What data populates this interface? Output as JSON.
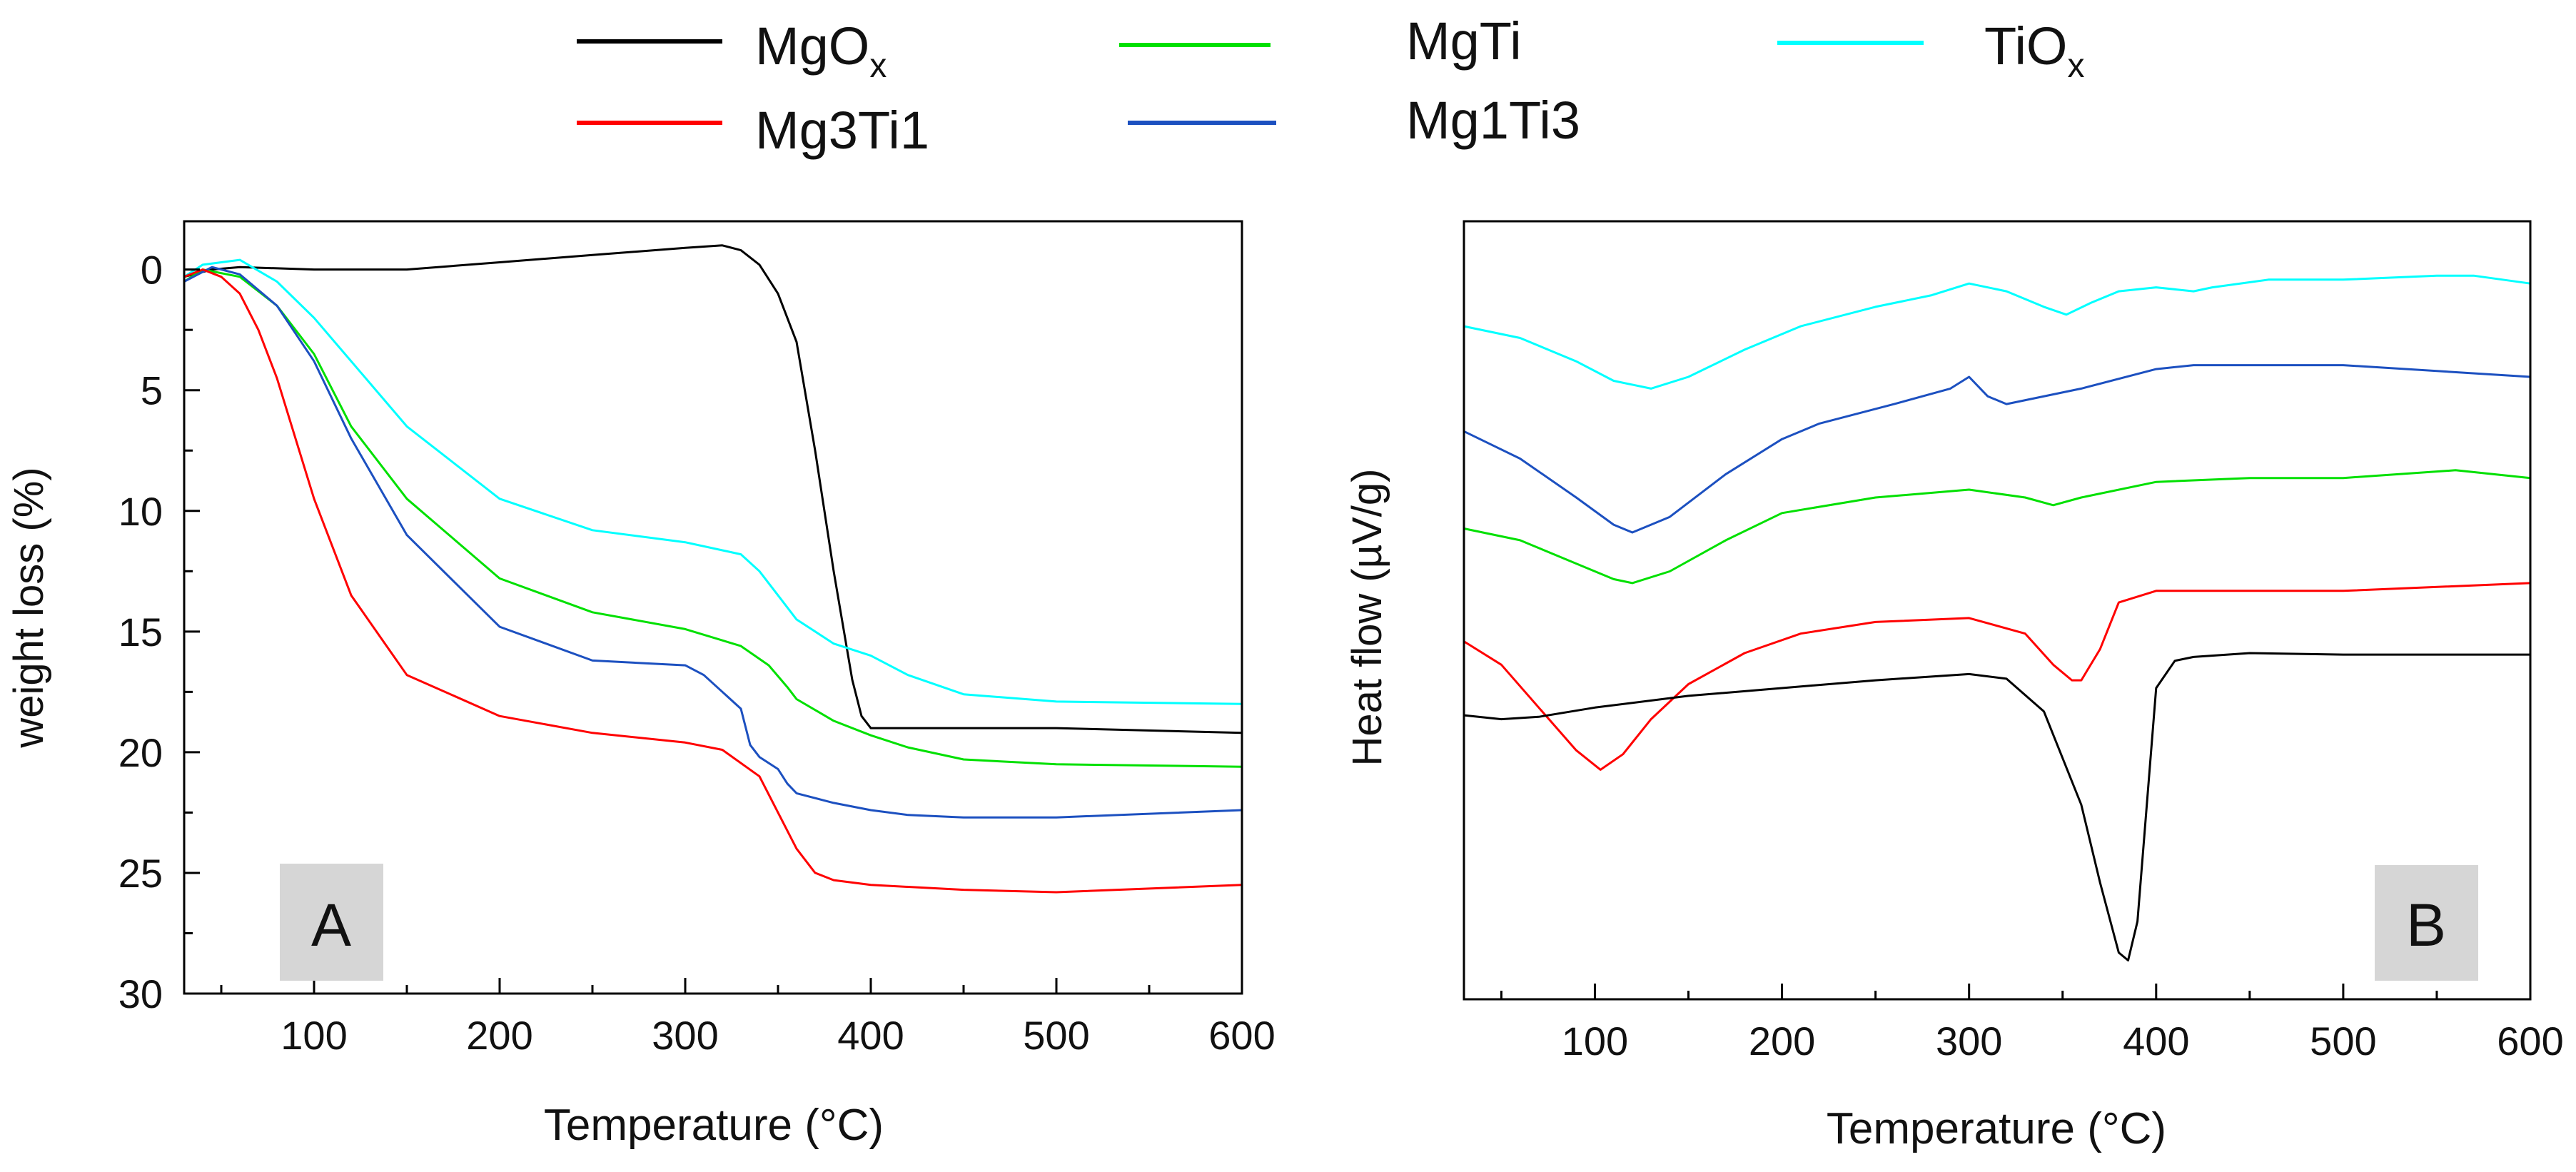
{
  "figure": {
    "legend": [
      {
        "label_main": "MgO",
        "label_sub": "x",
        "color": "#000000"
      },
      {
        "label_main": "MgTi",
        "label_sub": "",
        "color": "#00e000"
      },
      {
        "label_main": "TiO",
        "label_sub": "x",
        "color": "#00ffff"
      },
      {
        "label_main": "Mg3Ti1",
        "label_sub": "",
        "color": "#ff0000"
      },
      {
        "label_main": "Mg1Ti3",
        "label_sub": "",
        "color": "#1c50c0"
      }
    ]
  },
  "chart_data": [
    {
      "type": "line",
      "panel_label": "A",
      "title": "",
      "xlabel": "Temperature (°C)",
      "ylabel": "weight loss (%)",
      "xlim": [
        30,
        600
      ],
      "ylim": [
        30,
        -2
      ],
      "y_inverted": true,
      "xticks": [
        100,
        200,
        300,
        400,
        500,
        600
      ],
      "xtick_labels": [
        "100",
        "200",
        "300",
        "400",
        "500",
        "600"
      ],
      "yticks": [
        0,
        5,
        10,
        15,
        20,
        25,
        30
      ],
      "ytick_labels": [
        "0",
        "5",
        "10",
        "15",
        "20",
        "25",
        "30"
      ],
      "grid": false,
      "series": [
        {
          "name": "MgOx",
          "color": "#000000",
          "x": [
            30,
            45,
            60,
            100,
            150,
            200,
            250,
            300,
            320,
            330,
            340,
            350,
            360,
            370,
            380,
            390,
            395,
            400,
            420,
            500,
            600
          ],
          "y": [
            0.3,
            0.0,
            -0.1,
            0.0,
            0.0,
            -0.3,
            -0.6,
            -0.9,
            -1.0,
            -0.8,
            -0.2,
            1.0,
            3.0,
            7.5,
            12.5,
            17.0,
            18.5,
            19.0,
            19.0,
            19.0,
            19.2
          ]
        },
        {
          "name": "TiOx",
          "color": "#00ffff",
          "x": [
            30,
            40,
            60,
            80,
            100,
            120,
            150,
            200,
            250,
            300,
            330,
            340,
            350,
            360,
            380,
            400,
            420,
            450,
            500,
            600
          ],
          "y": [
            0.3,
            -0.2,
            -0.4,
            0.5,
            2.0,
            3.8,
            6.5,
            9.5,
            10.8,
            11.3,
            11.8,
            12.5,
            13.5,
            14.5,
            15.5,
            16.0,
            16.8,
            17.6,
            17.9,
            18.0
          ]
        },
        {
          "name": "MgTi",
          "color": "#00e000",
          "x": [
            30,
            40,
            60,
            80,
            100,
            120,
            150,
            200,
            250,
            300,
            330,
            345,
            355,
            360,
            380,
            400,
            420,
            450,
            500,
            600
          ],
          "y": [
            0.5,
            0.0,
            0.3,
            1.5,
            3.5,
            6.5,
            9.5,
            12.8,
            14.2,
            14.9,
            15.6,
            16.4,
            17.3,
            17.8,
            18.7,
            19.3,
            19.8,
            20.3,
            20.5,
            20.6
          ]
        },
        {
          "name": "Mg1Ti3",
          "color": "#1c50c0",
          "x": [
            30,
            45,
            60,
            80,
            100,
            120,
            150,
            200,
            250,
            300,
            310,
            320,
            330,
            335,
            340,
            350,
            355,
            360,
            380,
            400,
            420,
            450,
            500,
            600
          ],
          "y": [
            0.5,
            -0.1,
            0.2,
            1.5,
            3.8,
            7.0,
            11.0,
            14.8,
            16.2,
            16.4,
            16.8,
            17.5,
            18.2,
            19.7,
            20.2,
            20.7,
            21.3,
            21.7,
            22.1,
            22.4,
            22.6,
            22.7,
            22.7,
            22.4
          ]
        },
        {
          "name": "Mg3Ti1",
          "color": "#ff0000",
          "x": [
            30,
            40,
            50,
            60,
            70,
            80,
            90,
            100,
            120,
            150,
            200,
            250,
            300,
            320,
            340,
            350,
            360,
            370,
            380,
            400,
            450,
            500,
            600
          ],
          "y": [
            0.3,
            0.0,
            0.3,
            1.0,
            2.5,
            4.5,
            7.0,
            9.5,
            13.5,
            16.8,
            18.5,
            19.2,
            19.6,
            19.9,
            21.0,
            22.5,
            24.0,
            25.0,
            25.3,
            25.5,
            25.7,
            25.8,
            25.5
          ]
        }
      ]
    },
    {
      "type": "line",
      "panel_label": "B",
      "title": "",
      "xlabel": "Temperature (°C)",
      "ylabel": "Heat flow (µV/g)",
      "xlim": [
        30,
        600
      ],
      "ylim": [
        0,
        100
      ],
      "y_units": "arbitrary (no tick labels shown)",
      "xticks": [
        100,
        200,
        300,
        400,
        500,
        600
      ],
      "xtick_labels": [
        "100",
        "200",
        "300",
        "400",
        "500",
        "600"
      ],
      "grid": false,
      "series": [
        {
          "name": "TiOx",
          "color": "#00ffff",
          "x": [
            30,
            60,
            90,
            110,
            130,
            150,
            180,
            210,
            250,
            280,
            300,
            320,
            340,
            352,
            365,
            380,
            400,
            420,
            430,
            460,
            500,
            550,
            570,
            600
          ],
          "y": [
            86.5,
            85.0,
            82.0,
            79.5,
            78.5,
            80.0,
            83.5,
            86.5,
            89.0,
            90.5,
            92.0,
            91.0,
            89.0,
            88.0,
            89.5,
            91.0,
            91.5,
            91.0,
            91.5,
            92.5,
            92.5,
            93.0,
            93.0,
            92.0
          ]
        },
        {
          "name": "Mg1Ti3",
          "color": "#1c50c0",
          "x": [
            30,
            60,
            90,
            110,
            120,
            140,
            170,
            200,
            220,
            260,
            290,
            300,
            310,
            320,
            360,
            400,
            420,
            500,
            600
          ],
          "y": [
            73.0,
            69.5,
            64.5,
            61.0,
            60.0,
            62.0,
            67.5,
            72.0,
            74.0,
            76.5,
            78.5,
            80.0,
            77.5,
            76.5,
            78.5,
            81.0,
            81.5,
            81.5,
            80.0
          ]
        },
        {
          "name": "MgTi",
          "color": "#00e000",
          "x": [
            30,
            60,
            90,
            110,
            120,
            140,
            170,
            200,
            250,
            300,
            330,
            345,
            360,
            400,
            450,
            500,
            560,
            600
          ],
          "y": [
            60.5,
            59.0,
            56.0,
            54.0,
            53.5,
            55.0,
            59.0,
            62.5,
            64.5,
            65.5,
            64.5,
            63.5,
            64.5,
            66.5,
            67.0,
            67.0,
            68.0,
            67.0
          ]
        },
        {
          "name": "Mg3Ti1",
          "color": "#ff0000",
          "x": [
            30,
            50,
            70,
            90,
            103,
            115,
            130,
            150,
            180,
            210,
            250,
            300,
            330,
            345,
            355,
            360,
            370,
            380,
            400,
            450,
            500,
            600
          ],
          "y": [
            46.0,
            43.0,
            37.5,
            32.0,
            29.5,
            31.5,
            36.0,
            40.5,
            44.5,
            47.0,
            48.5,
            49.0,
            47.0,
            43.0,
            41.0,
            41.0,
            45.0,
            51.0,
            52.5,
            52.5,
            52.5,
            53.5
          ]
        },
        {
          "name": "MgOx",
          "color": "#000000",
          "x": [
            30,
            50,
            70,
            100,
            150,
            200,
            250,
            300,
            320,
            340,
            360,
            370,
            380,
            385,
            390,
            395,
            400,
            410,
            420,
            450,
            500,
            600
          ],
          "y": [
            36.5,
            36.0,
            36.3,
            37.5,
            39.0,
            40.0,
            41.0,
            41.8,
            41.2,
            37.0,
            25.0,
            15.0,
            6.0,
            5.0,
            10.0,
            25.0,
            40.0,
            43.5,
            44.0,
            44.5,
            44.3,
            44.3
          ]
        }
      ]
    }
  ]
}
